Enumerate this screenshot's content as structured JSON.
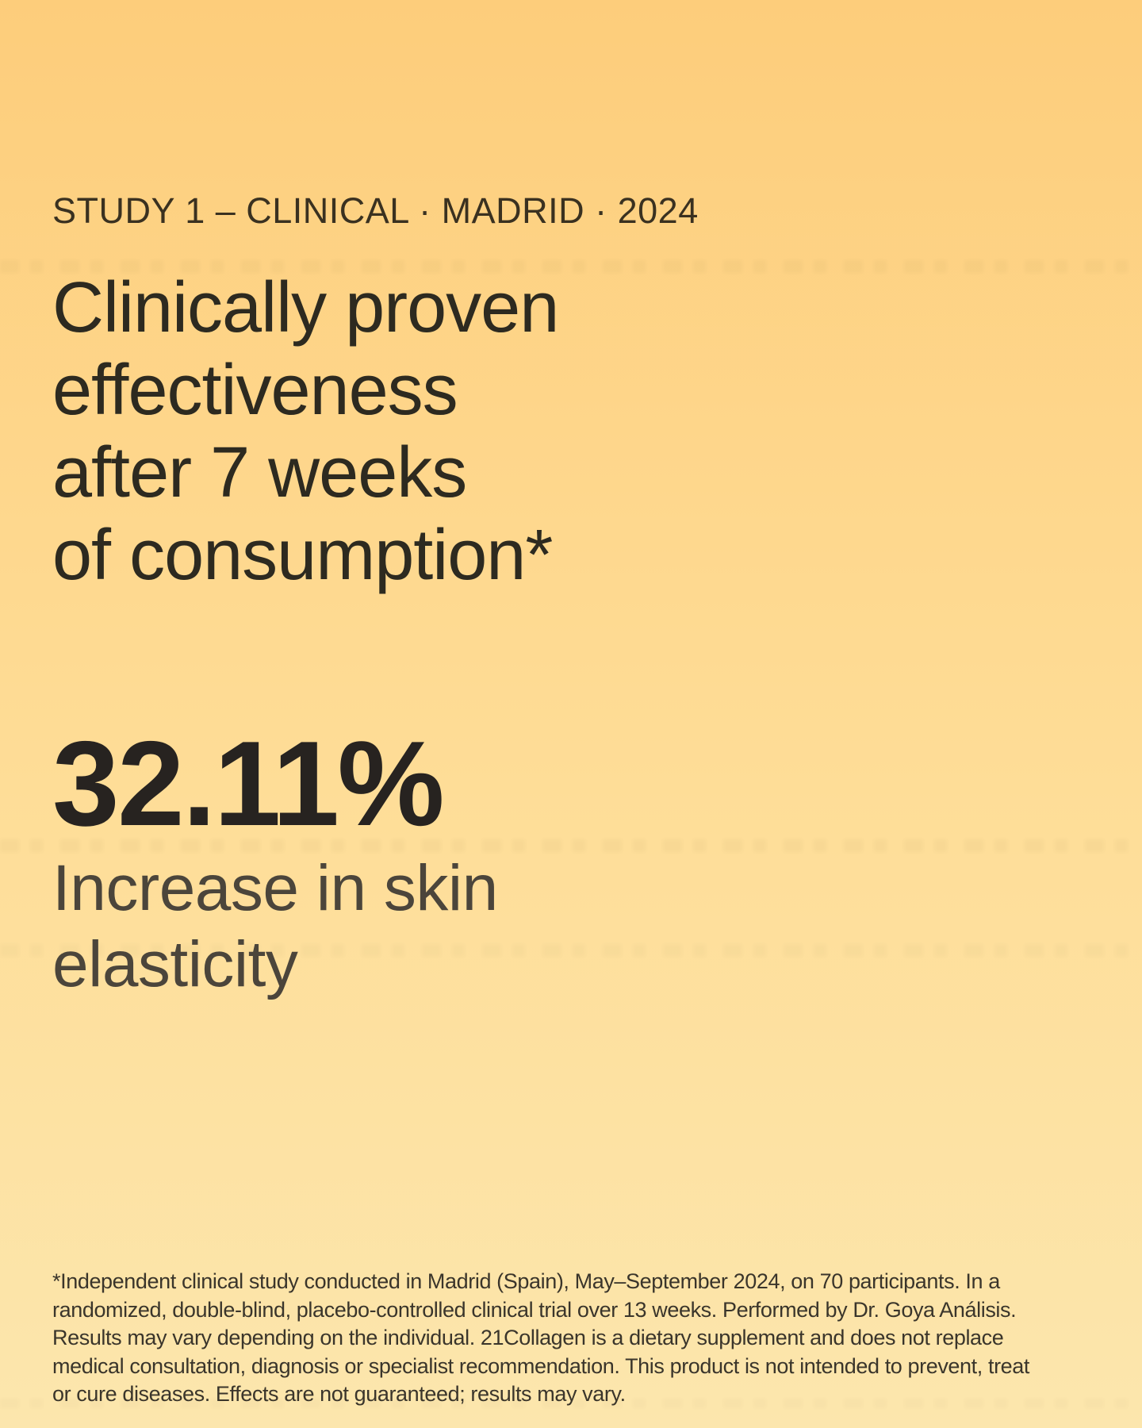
{
  "colors": {
    "background_top": "#fdcd7b",
    "background_middle": "#fedd97",
    "background_bottom": "#fce6ad",
    "eyebrow_text": "#3a3120",
    "headline_text": "#2d2a20",
    "stat_text": "#272320",
    "stat_label_text": "#4b453b",
    "footnote_text": "#3a352b"
  },
  "eyebrow": "STUDY 1 – CLINICAL · MADRID · 2024",
  "headline": {
    "lines": [
      "Clinically proven",
      "effectiveness",
      "after 7 weeks",
      "of consumption*"
    ]
  },
  "stat": {
    "value": "32.11%",
    "label_lines": [
      "Increase in skin",
      "elasticity"
    ]
  },
  "footnote": {
    "lines": [
      "*Independent clinical study conducted in Madrid (Spain), May–September 2024, on 70 participants. In a",
      "randomized, double-blind, placebo-controlled clinical trial over 13 weeks. Performed by Dr. Goya Análisis.",
      "Results may vary depending on the individual. 21Collagen is a dietary supplement and does not replace",
      "medical consultation, diagnosis or specialist recommendation. This product is not intended to prevent, treat",
      "or cure diseases. Effects are not guaranteed; results may vary."
    ]
  }
}
